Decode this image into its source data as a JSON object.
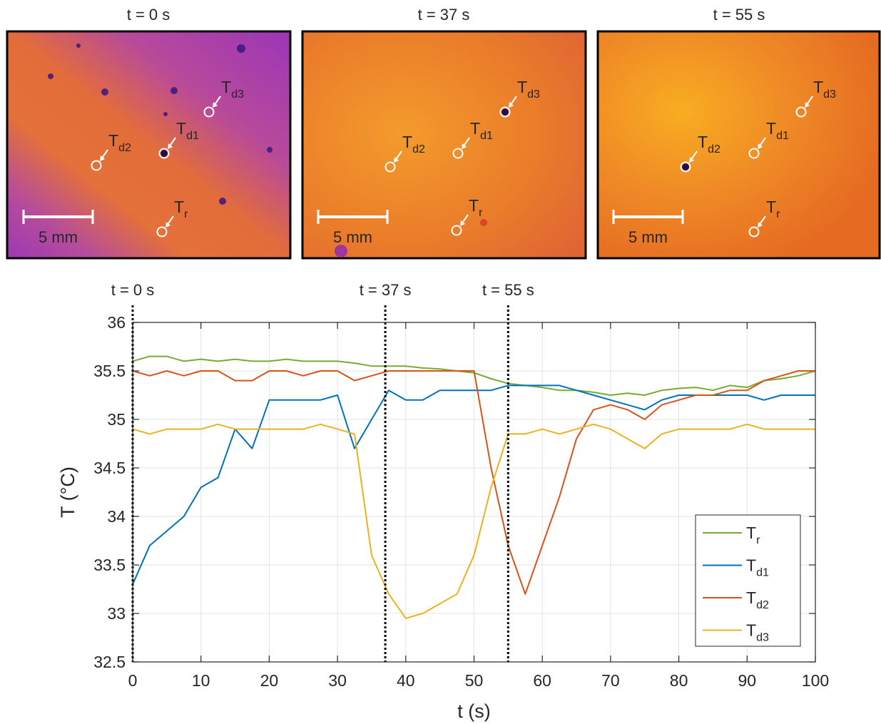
{
  "images": [
    {
      "title": "t = 0 s",
      "scale_bar": "5 mm",
      "markers": [
        {
          "text": "T",
          "sub": "d3"
        },
        {
          "text": "T",
          "sub": "d1"
        },
        {
          "text": "T",
          "sub": "d2"
        },
        {
          "text": "T",
          "sub": "r"
        }
      ]
    },
    {
      "title": "t = 37 s",
      "scale_bar": "5 mm",
      "markers": [
        {
          "text": "T",
          "sub": "d3"
        },
        {
          "text": "T",
          "sub": "d1"
        },
        {
          "text": "T",
          "sub": "d2"
        },
        {
          "text": "T",
          "sub": "r"
        }
      ]
    },
    {
      "title": "t = 55 s",
      "scale_bar": "5 mm",
      "markers": [
        {
          "text": "T",
          "sub": "d3"
        },
        {
          "text": "T",
          "sub": "d1"
        },
        {
          "text": "T",
          "sub": "d2"
        },
        {
          "text": "T",
          "sub": "r"
        }
      ]
    }
  ],
  "chart_data": {
    "type": "line",
    "xlabel": "t (s)",
    "ylabel": "T (°C)",
    "x": [
      0,
      2.5,
      5,
      7.5,
      10,
      12.5,
      15,
      17.5,
      20,
      22.5,
      25,
      27.5,
      30,
      32.5,
      35,
      37.5,
      40,
      42.5,
      45,
      47.5,
      50,
      52.5,
      55,
      57.5,
      60,
      62.5,
      65,
      67.5,
      70,
      72.5,
      75,
      77.5,
      80,
      82.5,
      85,
      87.5,
      90,
      92.5,
      95,
      97.5,
      100
    ],
    "series": [
      {
        "name": "T",
        "subscript": "r",
        "color": "#77ac30",
        "values": [
          35.6,
          35.65,
          35.65,
          35.6,
          35.62,
          35.6,
          35.62,
          35.6,
          35.6,
          35.62,
          35.6,
          35.6,
          35.6,
          35.58,
          35.55,
          35.55,
          35.55,
          35.53,
          35.52,
          35.5,
          35.48,
          35.42,
          35.37,
          35.35,
          35.33,
          35.3,
          35.3,
          35.28,
          35.25,
          35.27,
          35.25,
          35.3,
          35.32,
          35.33,
          35.3,
          35.35,
          35.33,
          35.4,
          35.42,
          35.45,
          35.5
        ]
      },
      {
        "name": "T",
        "subscript": "d1",
        "color": "#0072bd",
        "values": [
          33.3,
          33.7,
          33.85,
          34.0,
          34.3,
          34.4,
          34.9,
          34.7,
          35.2,
          35.2,
          35.2,
          35.2,
          35.25,
          34.7,
          35.0,
          35.3,
          35.2,
          35.2,
          35.3,
          35.3,
          35.3,
          35.3,
          35.35,
          35.35,
          35.35,
          35.35,
          35.3,
          35.25,
          35.2,
          35.15,
          35.1,
          35.2,
          35.25,
          35.25,
          35.25,
          35.25,
          35.25,
          35.2,
          35.25,
          35.25,
          35.25
        ]
      },
      {
        "name": "T",
        "subscript": "d2",
        "color": "#d95319",
        "values": [
          35.5,
          35.45,
          35.5,
          35.45,
          35.5,
          35.5,
          35.4,
          35.4,
          35.5,
          35.5,
          35.45,
          35.5,
          35.5,
          35.4,
          35.45,
          35.5,
          35.5,
          35.5,
          35.5,
          35.5,
          35.5,
          34.5,
          33.7,
          33.2,
          33.7,
          34.2,
          34.8,
          35.1,
          35.15,
          35.1,
          35.0,
          35.15,
          35.2,
          35.25,
          35.25,
          35.3,
          35.3,
          35.4,
          35.45,
          35.5,
          35.5
        ]
      },
      {
        "name": "T",
        "subscript": "d3",
        "color": "#edb120",
        "values": [
          34.9,
          34.85,
          34.9,
          34.9,
          34.9,
          34.95,
          34.9,
          34.9,
          34.9,
          34.9,
          34.9,
          34.95,
          34.9,
          34.85,
          33.6,
          33.2,
          32.95,
          33.0,
          33.1,
          33.2,
          33.6,
          34.3,
          34.85,
          34.85,
          34.9,
          34.85,
          34.9,
          34.95,
          34.9,
          34.8,
          34.7,
          34.85,
          34.9,
          34.9,
          34.9,
          34.9,
          34.95,
          34.9,
          34.9,
          34.9,
          34.9
        ]
      }
    ],
    "annotations": [
      {
        "x": 0,
        "label": "t = 0 s"
      },
      {
        "x": 37,
        "label": "t = 37 s"
      },
      {
        "x": 55,
        "label": "t = 55 s"
      }
    ],
    "xlim": [
      0,
      100
    ],
    "xticks": [
      0,
      10,
      20,
      30,
      40,
      50,
      60,
      70,
      80,
      90,
      100
    ],
    "ylim": [
      32.5,
      36
    ],
    "yticks": [
      32.5,
      33,
      33.5,
      34,
      34.5,
      35,
      35.5,
      36
    ],
    "grid": true,
    "legend": "lower-right"
  }
}
